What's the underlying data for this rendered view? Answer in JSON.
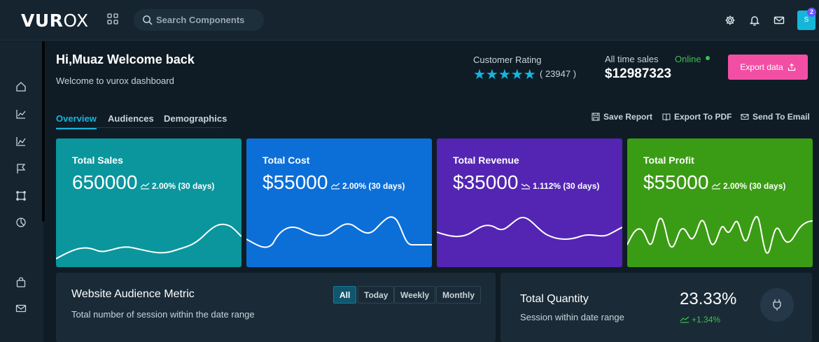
{
  "topbar": {
    "logo_bold": "VUR",
    "logo_light": "OX",
    "search_placeholder": "Search Components",
    "avatar_initial": "S",
    "notification_count": "2"
  },
  "header": {
    "greeting": "Hi,Muaz Welcome back",
    "subtitle": "Welcome to vurox dashboard",
    "customer_rating_label": "Customer Rating",
    "stars": "★★★★★",
    "rating_count": "( 23947 )",
    "all_time_sales_label": "All time sales",
    "all_time_sales_value": "$12987323",
    "status": "Online",
    "export_button": "Export data"
  },
  "tabs": [
    {
      "label": "Overview",
      "active": true
    },
    {
      "label": "Audiences",
      "active": false
    },
    {
      "label": "Demographics",
      "active": false
    }
  ],
  "actions": {
    "save_report": "Save Report",
    "export_pdf": "Export To PDF",
    "send_email": "Send To Email"
  },
  "cards": [
    {
      "title": "Total Sales",
      "value": "650000",
      "trend": "2.00% (30 days)",
      "direction": "up",
      "color": "#0b969d"
    },
    {
      "title": "Total Cost",
      "value": "$55000",
      "trend": "2.00% (30 days)",
      "direction": "up",
      "color": "#0c6fd8"
    },
    {
      "title": "Total Revenue",
      "value": "$35000",
      "trend": "1.112% (30 days)",
      "direction": "down",
      "color": "#5425b3"
    },
    {
      "title": "Total Profit",
      "value": "$55000",
      "trend": "2.00% (30 days)",
      "direction": "up",
      "color": "#3a9c14"
    }
  ],
  "audience_metric": {
    "title": "Website Audience Metric",
    "subtitle": "Total number of session within the date range",
    "filters": [
      "All",
      "Today",
      "Weekly",
      "Monthly"
    ],
    "active_filter": "All"
  },
  "total_quantity": {
    "title": "Total Quantity",
    "subtitle": "Session within date range",
    "value": "23.33%",
    "trend": "+1.34%"
  },
  "colors": {
    "accent": "#17b4dd",
    "pink": "#f24fa4",
    "online": "#3cc14a"
  }
}
